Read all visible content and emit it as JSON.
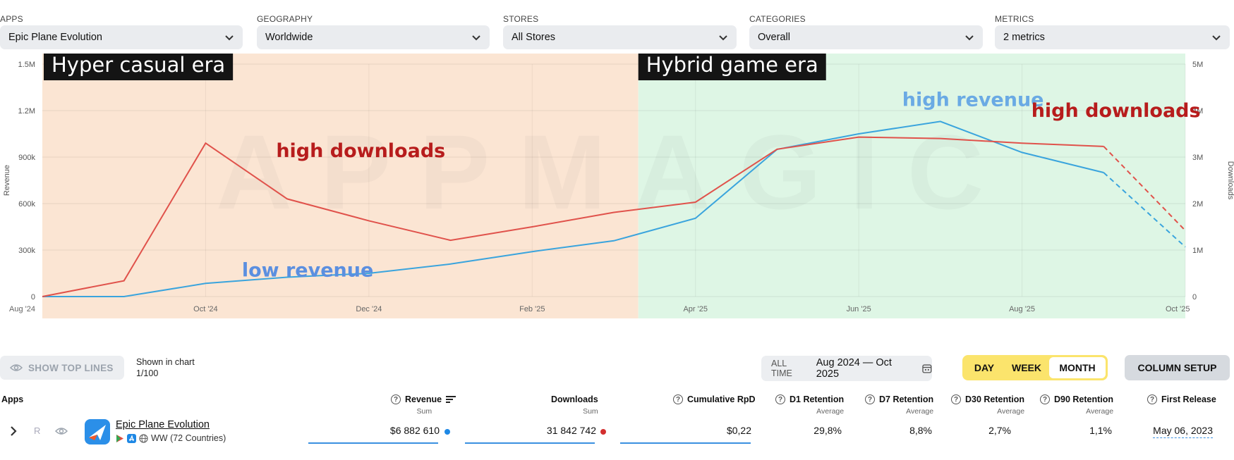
{
  "filters": [
    {
      "label": "APPS",
      "value": "Epic Plane Evolution"
    },
    {
      "label": "GEOGRAPHY",
      "value": "Worldwide"
    },
    {
      "label": "STORES",
      "value": "All Stores"
    },
    {
      "label": "CATEGORIES",
      "value": "Overall"
    },
    {
      "label": "METRICS",
      "value": "2 metrics"
    }
  ],
  "chart_data": {
    "type": "line",
    "x": [
      "Aug '24",
      "Sep '24",
      "Oct '24",
      "Nov '24",
      "Dec '24",
      "Jan '25",
      "Feb '25",
      "Mar '25",
      "Apr '25",
      "May '25",
      "Jun '25",
      "Jul '25",
      "Aug '25",
      "Sep '25",
      "Oct '25"
    ],
    "x_tick_labels": [
      "Aug '24",
      "Oct '24",
      "Dec '24",
      "Feb '25",
      "Apr '25",
      "Jun '25",
      "Aug '25",
      "Oct '25"
    ],
    "ylabel": "Revenue",
    "y2label": "Downloads",
    "ylim": [
      0,
      1500000
    ],
    "y2lim": [
      0,
      5000000
    ],
    "y_tick_labels": [
      "0",
      "300k",
      "600k",
      "900k",
      "1.2M",
      "1.5M"
    ],
    "y2_tick_labels": [
      "0",
      "1M",
      "2M",
      "3M",
      "4M",
      "5M"
    ],
    "series": [
      {
        "axis": "left",
        "color": "#3aa4dd",
        "values": [
          0,
          0,
          85000,
          125000,
          150000,
          210000,
          290000,
          360000,
          505000,
          950000,
          1050000,
          1130000,
          930000,
          800000,
          320000
        ],
        "dashed_from": 13
      },
      {
        "axis": "right",
        "color": "#e0524b",
        "values": [
          0,
          340000,
          3300000,
          2100000,
          1630000,
          1210000,
          1500000,
          1810000,
          2030000,
          3170000,
          3430000,
          3400000,
          3300000,
          3230000,
          1420000
        ],
        "dashed_from": 13
      }
    ],
    "bands": [
      {
        "from": 0,
        "to": 7.3,
        "color": "#fbe5d3",
        "label": "Hyper casual era"
      },
      {
        "from": 7.3,
        "to": 14,
        "color": "#def6e5",
        "label": "Hybrid game era"
      }
    ],
    "annotations": [
      {
        "text": "high downloads",
        "color": "#b71c1c",
        "x": 3.9,
        "y": 900000
      },
      {
        "text": "low revenue",
        "color": "#5b8fe0",
        "x": 3.25,
        "y": 130000
      },
      {
        "text": "high revenue",
        "color": "#6aaae4",
        "x": 11.4,
        "y": 1230000
      },
      {
        "text": "high downloads",
        "color": "#b71c1c",
        "x": 13.15,
        "y": 1160000
      }
    ],
    "watermark": "APPMAGIC",
    "legend": "none",
    "grid": true
  },
  "controls": {
    "show_top_lines": "SHOW TOP LINES",
    "shown_in_chart": "Shown in chart",
    "shown_count": "1/100",
    "all_time": "ALL TIME",
    "date_range": "Aug 2024 — Oct 2025",
    "granularity": [
      "DAY",
      "WEEK",
      "MONTH"
    ],
    "granularity_selected": "MONTH",
    "column_setup": "COLUMN SETUP"
  },
  "table": {
    "columns": {
      "apps": "Apps",
      "revenue": "Revenue",
      "revenue_sub": "Sum",
      "downloads": "Downloads",
      "downloads_sub": "Sum",
      "rpd": "Cumulative RpD",
      "d1": "D1 Retention",
      "d1_sub": "Average",
      "d7": "D7 Retention",
      "d7_sub": "Average",
      "d30": "D30 Retention",
      "d30_sub": "Average",
      "d90": "D90 Retention",
      "d90_sub": "Average",
      "release": "First Release"
    },
    "row": {
      "rank": "R",
      "name": "Epic Plane Evolution",
      "region": "WW (72 Countries)",
      "revenue": "$6 882 610",
      "downloads": "31 842 742",
      "rpd": "$0,22",
      "d1": "29,8%",
      "d7": "8,8%",
      "d30": "2,7%",
      "d90": "1,1%",
      "release": "May 06, 2023"
    }
  }
}
